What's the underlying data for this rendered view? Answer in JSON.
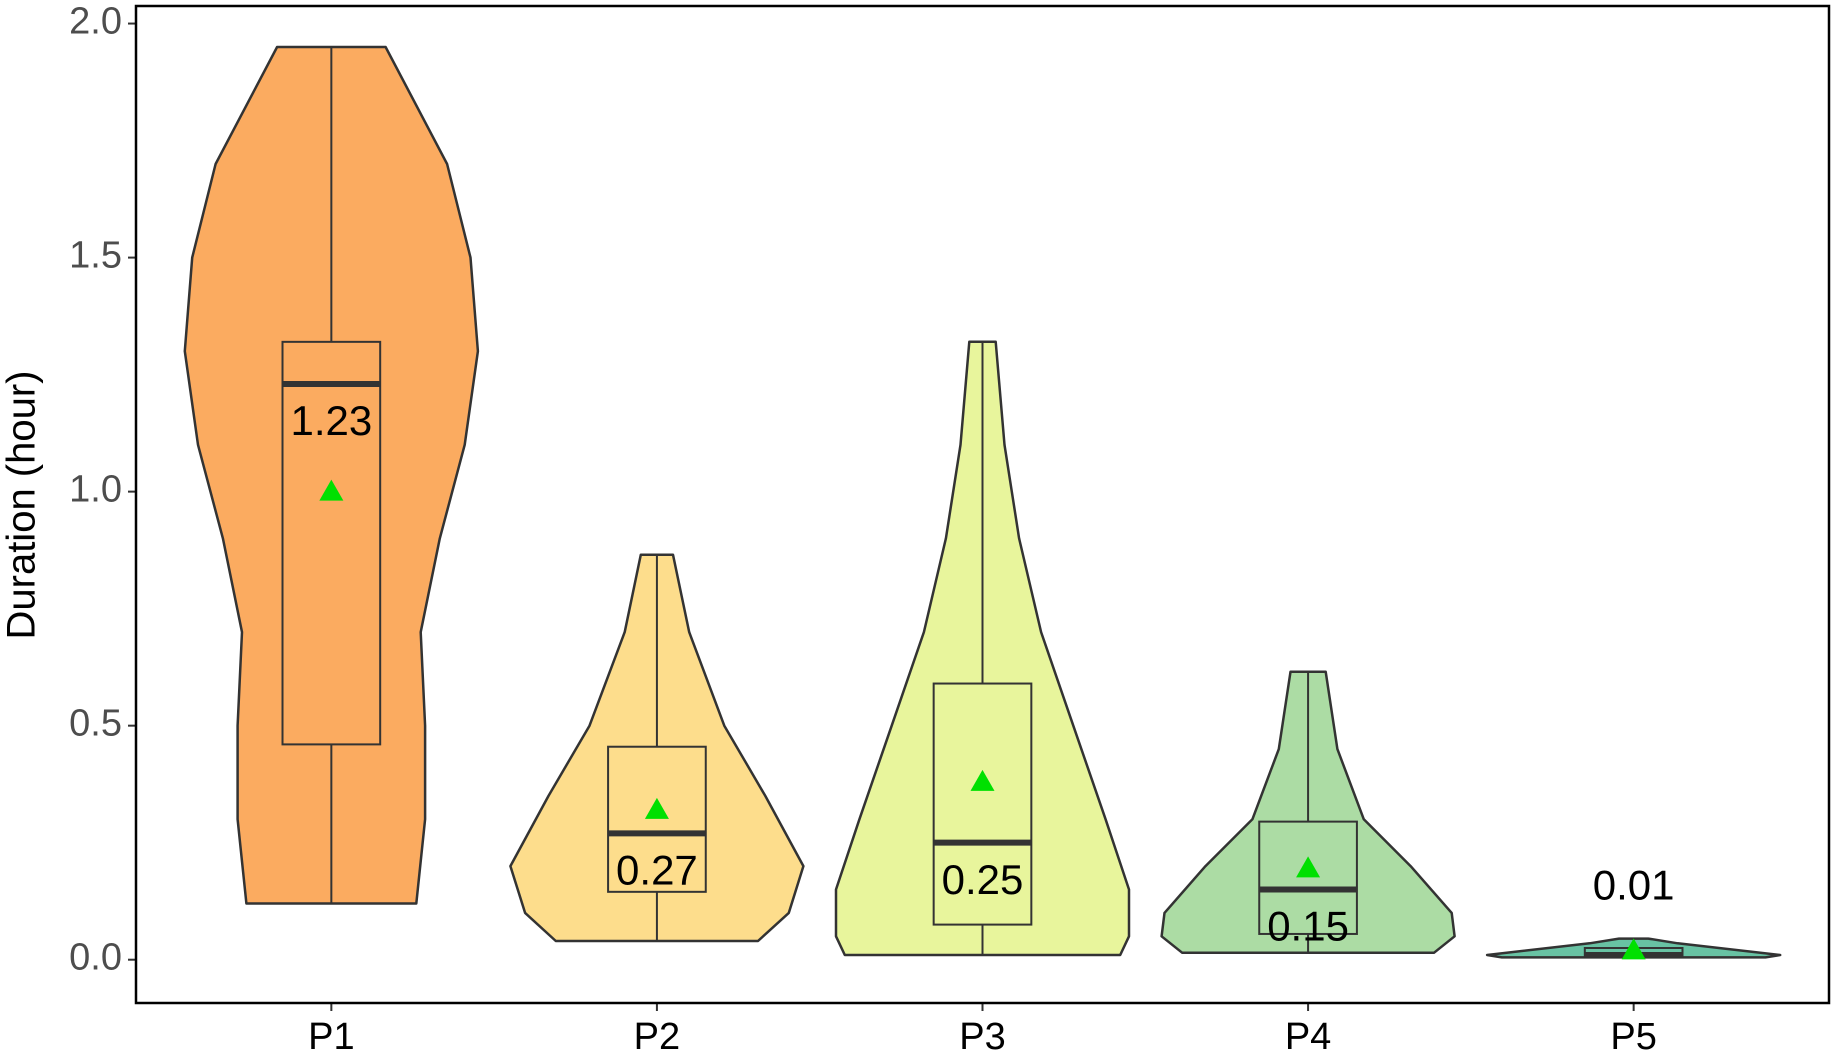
{
  "chart_data": {
    "type": "violin",
    "y_label": "Duration (hour)",
    "categories": [
      "P1",
      "P2",
      "P3",
      "P4",
      "P5"
    ],
    "colors": [
      "#fbab60",
      "#fddd8c",
      "#e8f59c",
      "#acdca4",
      "#68c2a3"
    ],
    "min": [
      0.12,
      0.04,
      0.01,
      0.015,
      0.005
    ],
    "q1": [
      0.46,
      0.145,
      0.075,
      0.055,
      0.005
    ],
    "median": [
      1.23,
      0.27,
      0.25,
      0.15,
      0.01
    ],
    "q3": [
      1.32,
      0.455,
      0.59,
      0.295,
      0.025
    ],
    "max": [
      1.95,
      0.865,
      1.32,
      0.615,
      0.045
    ],
    "mean": [
      1.0,
      0.32,
      0.38,
      0.195,
      0.02
    ],
    "mean_color": "#00e000",
    "violins": [
      {
        "y": [
          0.12,
          0.3,
          0.5,
          0.7,
          0.9,
          1.1,
          1.3,
          1.5,
          1.7,
          1.95
        ],
        "width": [
          0.58,
          0.64,
          0.64,
          0.61,
          0.74,
          0.91,
          1.0,
          0.95,
          0.79,
          0.37
        ]
      },
      {
        "y": [
          0.04,
          0.1,
          0.2,
          0.35,
          0.5,
          0.7,
          0.865
        ],
        "width": [
          0.69,
          0.9,
          1.0,
          0.74,
          0.46,
          0.22,
          0.11
        ]
      },
      {
        "y": [
          0.01,
          0.05,
          0.15,
          0.3,
          0.5,
          0.7,
          0.9,
          1.1,
          1.32
        ],
        "width": [
          0.94,
          1.0,
          1.0,
          0.84,
          0.62,
          0.4,
          0.25,
          0.15,
          0.09
        ]
      },
      {
        "y": [
          0.015,
          0.05,
          0.1,
          0.2,
          0.3,
          0.45,
          0.615
        ],
        "width": [
          0.86,
          1.0,
          0.98,
          0.7,
          0.38,
          0.2,
          0.12
        ]
      },
      {
        "y": [
          0.005,
          0.01,
          0.035,
          0.045
        ],
        "width": [
          0.9,
          1.0,
          0.3,
          0.1
        ]
      }
    ],
    "ylim": [
      -0.0925,
      2.0375
    ],
    "yticks": [
      {
        "value": 0,
        "label": "0.0"
      },
      0.5,
      {
        "value": 1,
        "label": "1.0"
      },
      1.5,
      {
        "value": 2,
        "label": "2.0"
      }
    ]
  }
}
